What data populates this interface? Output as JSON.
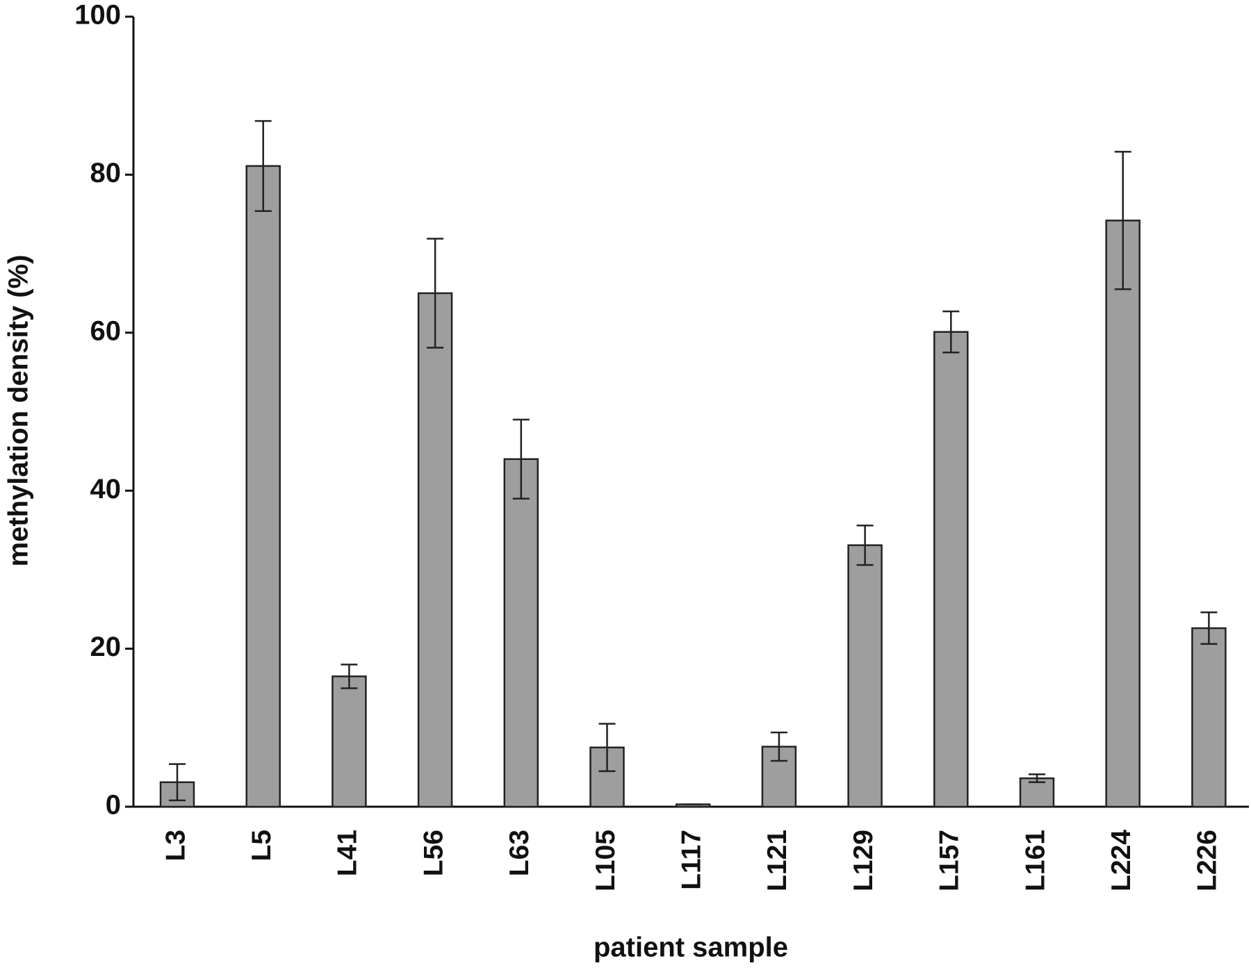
{
  "chart_data": {
    "type": "bar",
    "x_label": "patient sample",
    "y_label": "methylation density (%)",
    "categories": [
      "L3",
      "L5",
      "L41",
      "L56",
      "L63",
      "L105",
      "L117",
      "L121",
      "L129",
      "L157",
      "L161",
      "L224",
      "L226"
    ],
    "values": [
      3.1,
      81.1,
      16.5,
      65,
      44,
      7.5,
      0.3,
      7.6,
      33.1,
      60.1,
      3.6,
      74.2,
      22.6
    ],
    "errors": [
      2.3,
      5.7,
      1.5,
      6.9,
      5,
      3,
      0,
      1.8,
      2.5,
      2.6,
      0.5,
      8.7,
      2
    ],
    "color": "#9e9e9e",
    "ylim": [
      0,
      100
    ],
    "yticks": [
      0,
      20,
      40,
      60,
      80,
      100
    ],
    "grid": false
  }
}
